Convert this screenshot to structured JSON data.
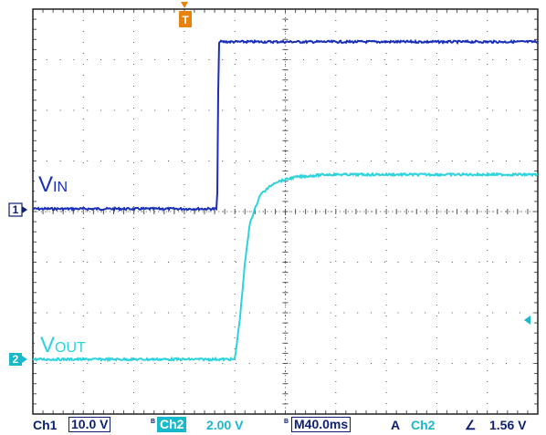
{
  "colors": {
    "ch1": "#1a2fb8",
    "ch2": "#2cd3dc",
    "grid": "#555555",
    "trigger": "#e8820c",
    "frame": "#202020",
    "text_dark": "#0c1f70"
  },
  "chart_data": {
    "type": "line",
    "title": "",
    "xlabel": "",
    "ylabel": "",
    "grid": true,
    "divisions": {
      "x": 10,
      "y": 8
    },
    "time_per_div_ms": 40.0,
    "trigger_position_div": 3.8,
    "series": [
      {
        "name": "VIN",
        "channel": "1",
        "volts_per_div": 10.0,
        "x_div": [
          0,
          3.65,
          3.68,
          3.72,
          10
        ],
        "y_div": [
          0,
          0,
          3.3,
          3.3,
          3.3
        ]
      },
      {
        "name": "VOUT",
        "channel": "2",
        "volts_per_div": 2.0,
        "x_div": [
          0,
          4.0,
          4.1,
          4.2,
          4.3,
          4.5,
          4.8,
          5.2,
          5.8,
          6.5,
          7.5,
          10
        ],
        "y_div": [
          0,
          0,
          0.8,
          1.9,
          2.7,
          3.25,
          3.5,
          3.6,
          3.65,
          3.65,
          3.65,
          3.65
        ]
      }
    ]
  },
  "labels": {
    "vin_main": "V",
    "vin_sub": "IN",
    "vout_main": "V",
    "vout_sub": "OUT",
    "ch1_marker": "1",
    "ch2_marker": "2",
    "trigger_marker": "T"
  },
  "status_bar": {
    "ch1_label": "Ch1",
    "ch1_scale": "10.0 V",
    "bw1": "B",
    "ch2_label": "Ch2",
    "ch2_scale": "2.00 V",
    "bw2": "B",
    "timebase": "M40.0ms",
    "trigger_mode": "A",
    "trigger_source": "Ch2",
    "trigger_slope": "∠",
    "trigger_level": "1.56 V"
  }
}
